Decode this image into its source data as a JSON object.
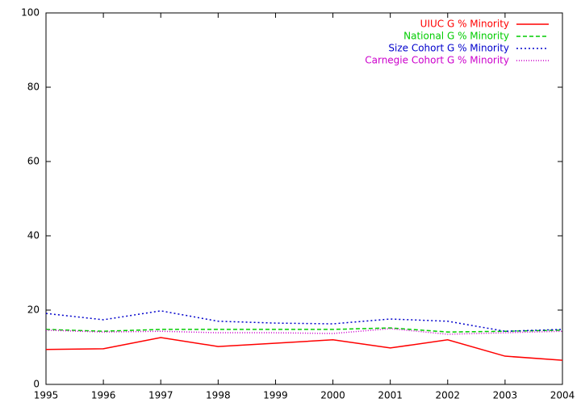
{
  "chart_data": {
    "type": "line",
    "x": [
      1995,
      1996,
      1997,
      1998,
      1999,
      2000,
      2001,
      2002,
      2003,
      2004
    ],
    "xlim": [
      1995,
      2004
    ],
    "xticks": [
      1995,
      1996,
      1997,
      1998,
      1999,
      2000,
      2001,
      2002,
      2003,
      2004
    ],
    "ylim": [
      0,
      100
    ],
    "yticks": [
      0,
      20,
      40,
      60,
      80,
      100
    ],
    "legend": "top-right",
    "series": [
      {
        "name": "UIUC G % Minority",
        "color": "#ff0000",
        "dash": "solid",
        "values": [
          9.4,
          9.6,
          12.6,
          10.2,
          11.1,
          12.0,
          9.8,
          12.0,
          7.6,
          6.5
        ]
      },
      {
        "name": "National G % Minority",
        "color": "#00cc00",
        "dash": "dashed",
        "values": [
          14.8,
          14.3,
          14.8,
          14.8,
          14.8,
          14.8,
          15.2,
          14.1,
          14.3,
          14.6
        ]
      },
      {
        "name": "Size Cohort G % Minority",
        "color": "#0000cc",
        "dash": "dotted",
        "values": [
          19.1,
          17.4,
          19.8,
          17.0,
          16.5,
          16.3,
          17.6,
          17.0,
          14.3,
          14.8
        ]
      },
      {
        "name": "Carnegie Cohort G % Minority",
        "color": "#cc00cc",
        "dash": "fine-dotted",
        "values": [
          14.6,
          14.1,
          14.3,
          13.9,
          13.9,
          13.7,
          15.0,
          13.5,
          13.9,
          14.3
        ]
      }
    ]
  }
}
